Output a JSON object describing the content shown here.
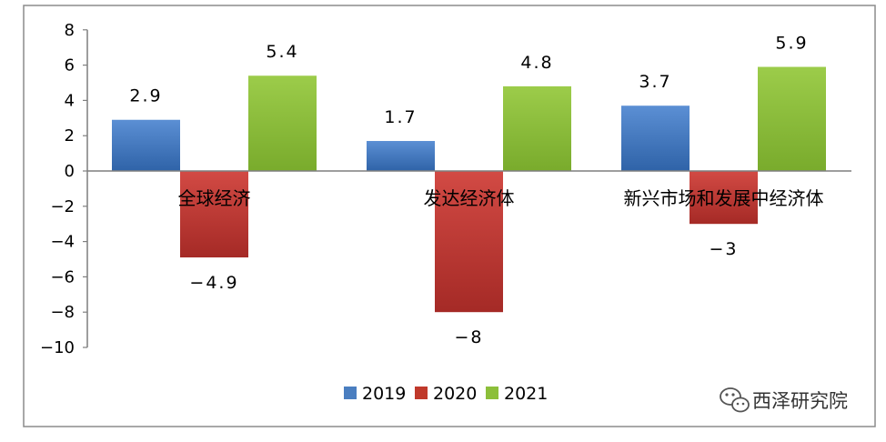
{
  "chart_data": {
    "type": "bar",
    "categories": [
      "全球经济",
      "发达经济体",
      "新兴市场和发展中经济体"
    ],
    "series": [
      {
        "name": "2019",
        "values": [
          2.9,
          1.7,
          3.7
        ],
        "labels": [
          "2.9",
          "1.7",
          "3.7"
        ],
        "color": "#4a7ec0"
      },
      {
        "name": "2020",
        "values": [
          -4.9,
          -8,
          -3
        ],
        "labels": [
          "-4.9",
          "-8",
          "-3"
        ],
        "color": "#c0392b"
      },
      {
        "name": "2021",
        "values": [
          5.4,
          4.8,
          5.9
        ],
        "labels": [
          "5.4",
          "4.8",
          "5.9"
        ],
        "color": "#8cbf3a"
      }
    ],
    "ylim": [
      -10,
      8
    ],
    "yticks": [
      "8",
      "6",
      "4",
      "2",
      "0",
      "-2",
      "-4",
      "-6",
      "-8",
      "-10"
    ],
    "legend": "bottom",
    "grid": false
  },
  "watermark": {
    "text": "西泽研究院",
    "icon": "wechat-icon"
  }
}
